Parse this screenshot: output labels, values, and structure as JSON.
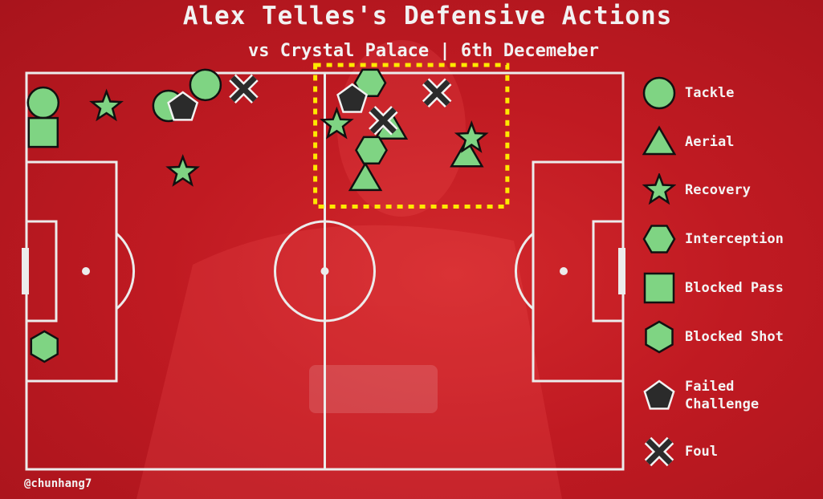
{
  "title": "Alex Telles's Defensive Actions",
  "subtitle": "vs Crystal Palace | 6th Decemeber",
  "credit": "@chunhang7",
  "colors": {
    "background": "#c01a22",
    "lines": "#ececec",
    "marker_fill": "#7fd483",
    "dark_marker": "#2b2b2b",
    "highlight_box": "#ffe800"
  },
  "legend": [
    {
      "key": "tackle",
      "label": "Tackle",
      "icon": "circle-icon"
    },
    {
      "key": "aerial",
      "label": "Aerial",
      "icon": "triangle-icon"
    },
    {
      "key": "recovery",
      "label": "Recovery",
      "icon": "star-icon"
    },
    {
      "key": "interception",
      "label": "Interception",
      "icon": "hexagon-icon"
    },
    {
      "key": "blocked_pass",
      "label": "Blocked Pass",
      "icon": "square-icon"
    },
    {
      "key": "blocked_shot",
      "label": "Blocked Shot",
      "icon": "hexagon-vertical-icon"
    },
    {
      "key": "failed_challenge",
      "label": "Failed\nChallenge",
      "icon": "pentagon-icon"
    },
    {
      "key": "foul",
      "label": "Foul",
      "icon": "x-icon"
    }
  ],
  "chart_data": {
    "type": "scatter",
    "title": "Alex Telles's Defensive Actions",
    "subtitle": "vs Crystal Palace | 6th Decemeber",
    "xlabel": "",
    "ylabel": "",
    "xlim": [
      0,
      100
    ],
    "ylim": [
      0,
      100
    ],
    "highlight_zone": {
      "x": [
        48.4,
        80.6
      ],
      "y": [
        66.3,
        100
      ]
    },
    "series": [
      {
        "name": "Tackle",
        "marker": "circle",
        "points": [
          [
            2.8,
            92.5
          ],
          [
            23.8,
            91.7
          ],
          [
            30.0,
            97.0
          ]
        ]
      },
      {
        "name": "Aerial",
        "marker": "triangle",
        "points": [
          [
            56.8,
            73.5
          ],
          [
            61.1,
            86.5
          ],
          [
            73.8,
            79.5
          ]
        ]
      },
      {
        "name": "Recovery",
        "marker": "star",
        "points": [
          [
            13.4,
            91.5
          ],
          [
            26.2,
            75.0
          ],
          [
            52.0,
            87.0
          ],
          [
            74.6,
            83.5
          ]
        ]
      },
      {
        "name": "Interception",
        "marker": "hexagon",
        "points": [
          [
            57.6,
            97.5
          ],
          [
            57.8,
            80.5
          ]
        ]
      },
      {
        "name": "Blocked Pass",
        "marker": "square",
        "points": [
          [
            2.8,
            85.0
          ]
        ]
      },
      {
        "name": "Blocked Shot",
        "marker": "hexagon-vertical",
        "points": [
          [
            3.0,
            31.0
          ]
        ]
      },
      {
        "name": "Failed Challenge",
        "marker": "pentagon",
        "points": [
          [
            26.2,
            91.5
          ],
          [
            54.6,
            93.5
          ]
        ]
      },
      {
        "name": "Foul",
        "marker": "x",
        "points": [
          [
            36.4,
            96.0
          ],
          [
            59.8,
            88.0
          ],
          [
            68.8,
            95.0
          ]
        ]
      }
    ]
  }
}
